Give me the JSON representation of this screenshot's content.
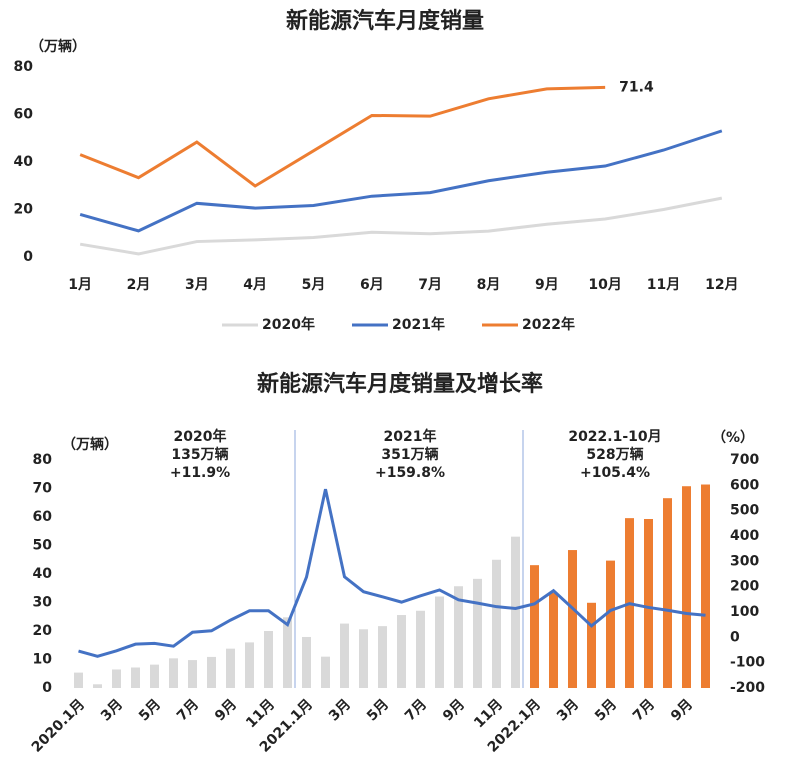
{
  "chart_data": [
    {
      "type": "line",
      "title": "新能源汽车月度销量",
      "y_label": "（万辆）",
      "categories": [
        "1月",
        "2月",
        "3月",
        "4月",
        "5月",
        "6月",
        "7月",
        "8月",
        "9月",
        "10月",
        "11月",
        "12月"
      ],
      "ylim": [
        0,
        80
      ],
      "yticks": [
        0,
        20,
        40,
        60,
        80
      ],
      "grid": false,
      "legend": "bottom",
      "series": [
        {
          "name": "2020年",
          "color": "#d9d9d9",
          "values": [
            5.4,
            1.3,
            6.5,
            7.2,
            8.2,
            10.4,
            9.8,
            10.9,
            13.8,
            16.0,
            20.0,
            24.8
          ]
        },
        {
          "name": "2021年",
          "color": "#4472c4",
          "values": [
            17.9,
            11.0,
            22.6,
            20.6,
            21.7,
            25.6,
            27.1,
            32.1,
            35.7,
            38.3,
            45.0,
            53.1
          ]
        },
        {
          "name": "2022年",
          "color": "#ed7d31",
          "values": [
            43.1,
            33.4,
            48.4,
            29.9,
            44.7,
            59.6,
            59.3,
            66.6,
            70.8,
            71.4,
            null,
            null
          ],
          "value_labels": [
            null,
            null,
            null,
            null,
            null,
            null,
            null,
            null,
            null,
            "71.4",
            null,
            null
          ]
        }
      ]
    },
    {
      "type": "bar",
      "title": "新能源汽车月度销量及增长率",
      "y_label": "（万辆）",
      "y2_label": "（%）",
      "categories": [
        "2020.1月",
        null,
        "3月",
        null,
        "5月",
        null,
        "7月",
        null,
        "9月",
        null,
        "11月",
        null,
        "2021.1月",
        null,
        "3月",
        null,
        "5月",
        null,
        "7月",
        null,
        "9月",
        null,
        "11月",
        null,
        "2022.1月",
        null,
        "3月",
        null,
        "5月",
        null,
        "7月",
        null,
        "9月",
        null
      ],
      "ylim": [
        0,
        80
      ],
      "yticks": [
        0,
        10,
        20,
        30,
        40,
        50,
        60,
        70,
        80
      ],
      "y2lim": [
        -200,
        700
      ],
      "y2ticks": [
        -200,
        -100,
        0,
        100,
        200,
        300,
        400,
        500,
        600,
        700
      ],
      "annotations": [
        [
          "2020年",
          "135万辆",
          "+11.9%"
        ],
        [
          "2021年",
          "351万辆",
          "+159.8%"
        ],
        [
          "2022.1-10月",
          "528万辆",
          "+105.4%"
        ]
      ],
      "series": [
        {
          "type": "bar",
          "color": "#d9d9d9",
          "values": [
            5.4,
            1.3,
            6.5,
            7.2,
            8.2,
            10.4,
            9.8,
            10.9,
            13.8,
            16.0,
            20.0,
            24.8,
            17.9,
            11.0,
            22.6,
            20.6,
            21.7,
            25.6,
            27.1,
            32.1,
            35.7,
            38.3,
            45.0,
            53.1,
            null,
            null,
            null,
            null,
            null,
            null,
            null,
            null,
            null,
            null
          ]
        },
        {
          "type": "bar",
          "color": "#ed7d31",
          "values": [
            null,
            null,
            null,
            null,
            null,
            null,
            null,
            null,
            null,
            null,
            null,
            null,
            null,
            null,
            null,
            null,
            null,
            null,
            null,
            null,
            null,
            null,
            null,
            null,
            43.1,
            33.4,
            48.4,
            29.9,
            44.7,
            59.6,
            59.3,
            66.6,
            70.8,
            71.4
          ]
        },
        {
          "type": "line",
          "axis": "y2",
          "color": "#4472c4",
          "values": [
            -54,
            -75,
            -53,
            -27,
            -24,
            -35,
            20,
            26,
            68,
            105,
            105,
            50,
            238,
            585,
            239,
            180,
            160,
            139,
            164,
            187,
            148,
            135,
            121,
            114,
            132,
            184,
            115,
            45,
            106,
            133,
            118,
            107,
            94,
            87
          ]
        }
      ]
    }
  ]
}
